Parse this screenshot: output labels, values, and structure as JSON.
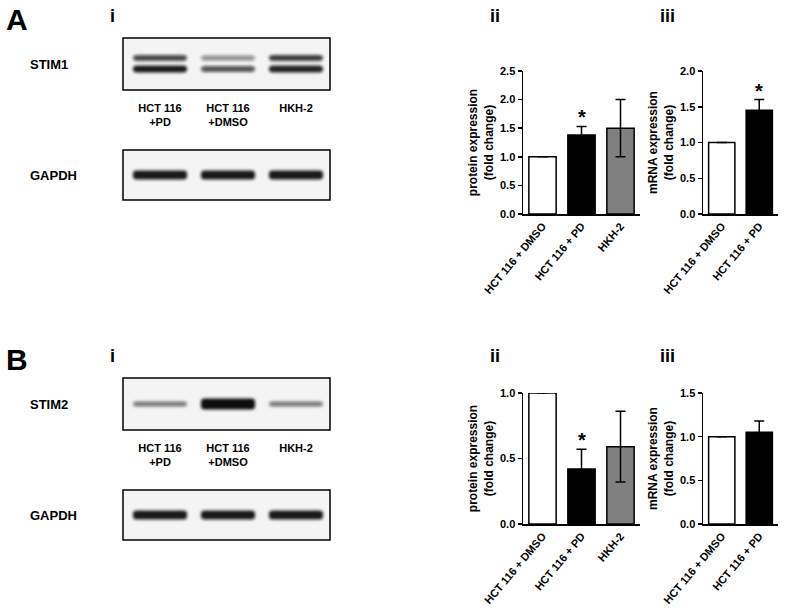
{
  "panels": [
    {
      "label": "A",
      "part_labels": [
        "i",
        "ii",
        "iii"
      ],
      "blot": {
        "rows": [
          "STIM1",
          "GAPDH"
        ],
        "lanes": [
          [
            "HCT 116",
            "+PD"
          ],
          [
            "HCT 116",
            "+DMSO"
          ],
          [
            "HKH-2"
          ]
        ]
      }
    },
    {
      "label": "B",
      "part_labels": [
        "i",
        "ii",
        "iii"
      ],
      "blot": {
        "rows": [
          "STIM2",
          "GAPDH"
        ],
        "lanes": [
          [
            "HCT 116",
            "+PD"
          ],
          [
            "HCT 116",
            "+DMSO"
          ],
          [
            "HKH-2"
          ]
        ]
      }
    }
  ],
  "chart_data": [
    {
      "type": "bar",
      "y_label": [
        "protein expression",
        "(fold change)"
      ],
      "categories": [
        "HCT 116 + DMSO",
        "HCT 116 + PD",
        "HKH-2"
      ],
      "values": [
        1.0,
        1.38,
        1.5
      ],
      "errors": [
        0,
        0.15,
        0.5
      ],
      "colors": [
        "#ffffff",
        "#000000",
        "#808080"
      ],
      "ylim": [
        0,
        2.5
      ],
      "yticks": [
        {
          "value": 0,
          "label": "0.0"
        },
        0.5,
        {
          "value": 1,
          "label": "1.0"
        },
        1.5,
        {
          "value": 2,
          "label": "2.0"
        },
        2.5
      ],
      "grid": false,
      "annotations": [
        {
          "category": "HCT 116 + PD",
          "text": "*"
        }
      ]
    },
    {
      "type": "bar",
      "y_label": [
        "mRNA expression",
        "(fold change)"
      ],
      "categories": [
        "HCT 116 + DMSO",
        "HCT 116 + PD"
      ],
      "values": [
        1.0,
        1.45
      ],
      "errors": [
        0,
        0.15
      ],
      "colors": [
        "#ffffff",
        "#000000"
      ],
      "ylim": [
        0,
        2.0
      ],
      "yticks": [
        {
          "value": 0,
          "label": "0.0"
        },
        0.5,
        {
          "value": 1,
          "label": "1.0"
        },
        1.5,
        {
          "value": 2,
          "label": "2.0"
        }
      ],
      "grid": false,
      "annotations": [
        {
          "category": "HCT 116 + PD",
          "text": "*"
        }
      ]
    },
    {
      "type": "bar",
      "y_label": [
        "protein expression",
        "(fold change)"
      ],
      "categories": [
        "HCT 116 + DMSO",
        "HCT 116 + PD",
        "HKH-2"
      ],
      "values": [
        1.0,
        0.42,
        0.59
      ],
      "errors": [
        0,
        0.15,
        0.27
      ],
      "colors": [
        "#ffffff",
        "#000000",
        "#808080"
      ],
      "ylim": [
        0,
        1.0
      ],
      "yticks": [
        {
          "value": 0,
          "label": "0.0"
        },
        0.5,
        {
          "value": 1,
          "label": "1.0"
        }
      ],
      "grid": false,
      "annotations": [
        {
          "category": "HCT 116 + PD",
          "text": "*"
        }
      ]
    },
    {
      "type": "bar",
      "y_label": [
        "mRNA expression",
        "(fold change)"
      ],
      "categories": [
        "HCT 116 + DMSO",
        "HCT 116 + PD"
      ],
      "values": [
        1.0,
        1.05
      ],
      "errors": [
        0,
        0.13
      ],
      "colors": [
        "#ffffff",
        "#000000"
      ],
      "ylim": [
        0,
        1.5
      ],
      "yticks": [
        {
          "value": 0,
          "label": "0.0"
        },
        0.5,
        {
          "value": 1,
          "label": "1.0"
        },
        1.5
      ],
      "grid": false
    }
  ]
}
